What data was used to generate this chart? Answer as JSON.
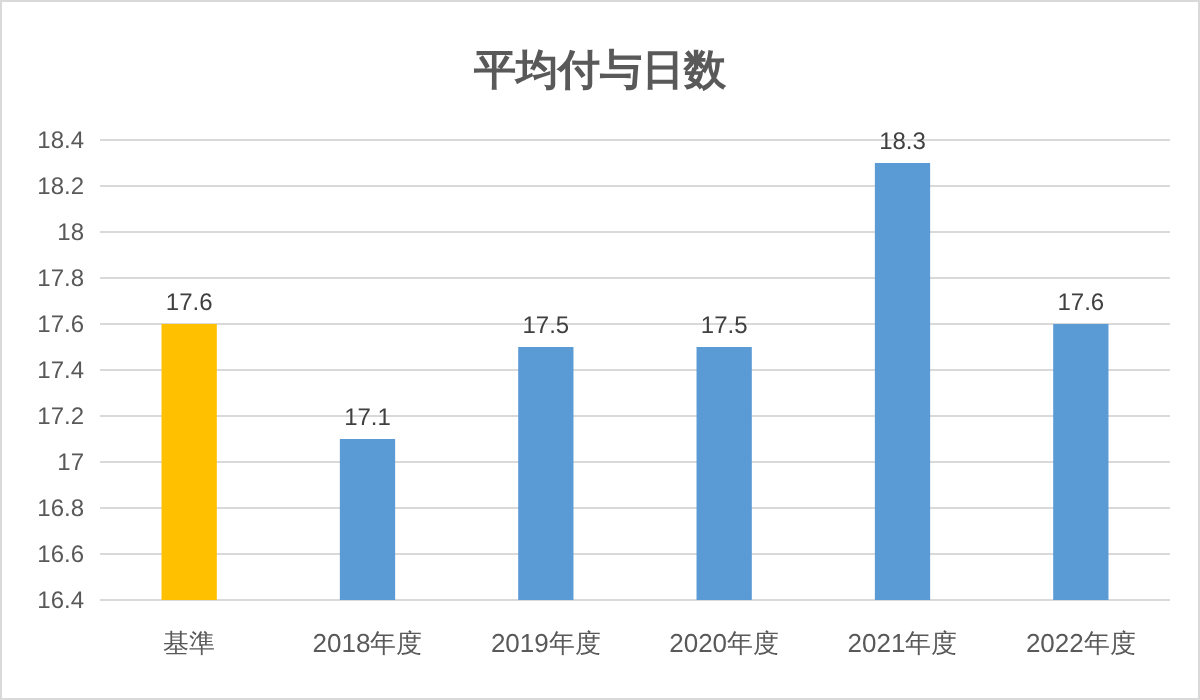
{
  "chart_data": {
    "type": "bar",
    "title": "平均付与日数",
    "categories": [
      "基準",
      "2018年度",
      "2019年度",
      "2020年度",
      "2021年度",
      "2022年度"
    ],
    "values": [
      17.6,
      17.1,
      17.5,
      17.5,
      18.3,
      17.6
    ],
    "colors": [
      "#ffc000",
      "#5b9bd5",
      "#5b9bd5",
      "#5b9bd5",
      "#5b9bd5",
      "#5b9bd5"
    ],
    "ylim": [
      16.4,
      18.4
    ],
    "yticks": [
      16.4,
      16.6,
      16.8,
      17,
      17.2,
      17.4,
      17.6,
      17.8,
      18,
      18.2,
      18.4
    ],
    "grid": "y",
    "data_labels": true
  }
}
